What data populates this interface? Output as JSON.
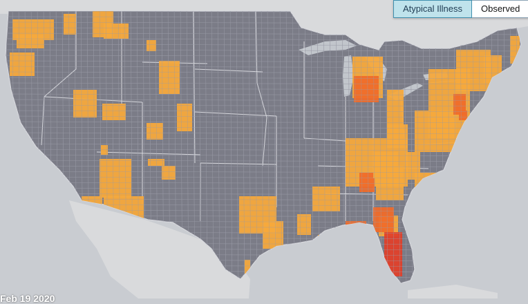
{
  "tabs": [
    {
      "label": "Atypical Illness",
      "active": true
    },
    {
      "label": "Observed",
      "active": false
    }
  ],
  "date_label": "Feb 19 2020",
  "colors": {
    "ocean": "#c9ccd1",
    "land_foreign": "#d9dadc",
    "us_counties": "#7b7c87",
    "county_lines": "#9a9ba6",
    "state_lines": "#d8d9de",
    "lakes": "#c2c6cc",
    "level_moderate": "#f6a93c",
    "level_high": "#ef6c2a",
    "level_very_high": "#e0402a"
  },
  "legend_levels": [
    "moderate",
    "high",
    "very-high"
  ]
}
